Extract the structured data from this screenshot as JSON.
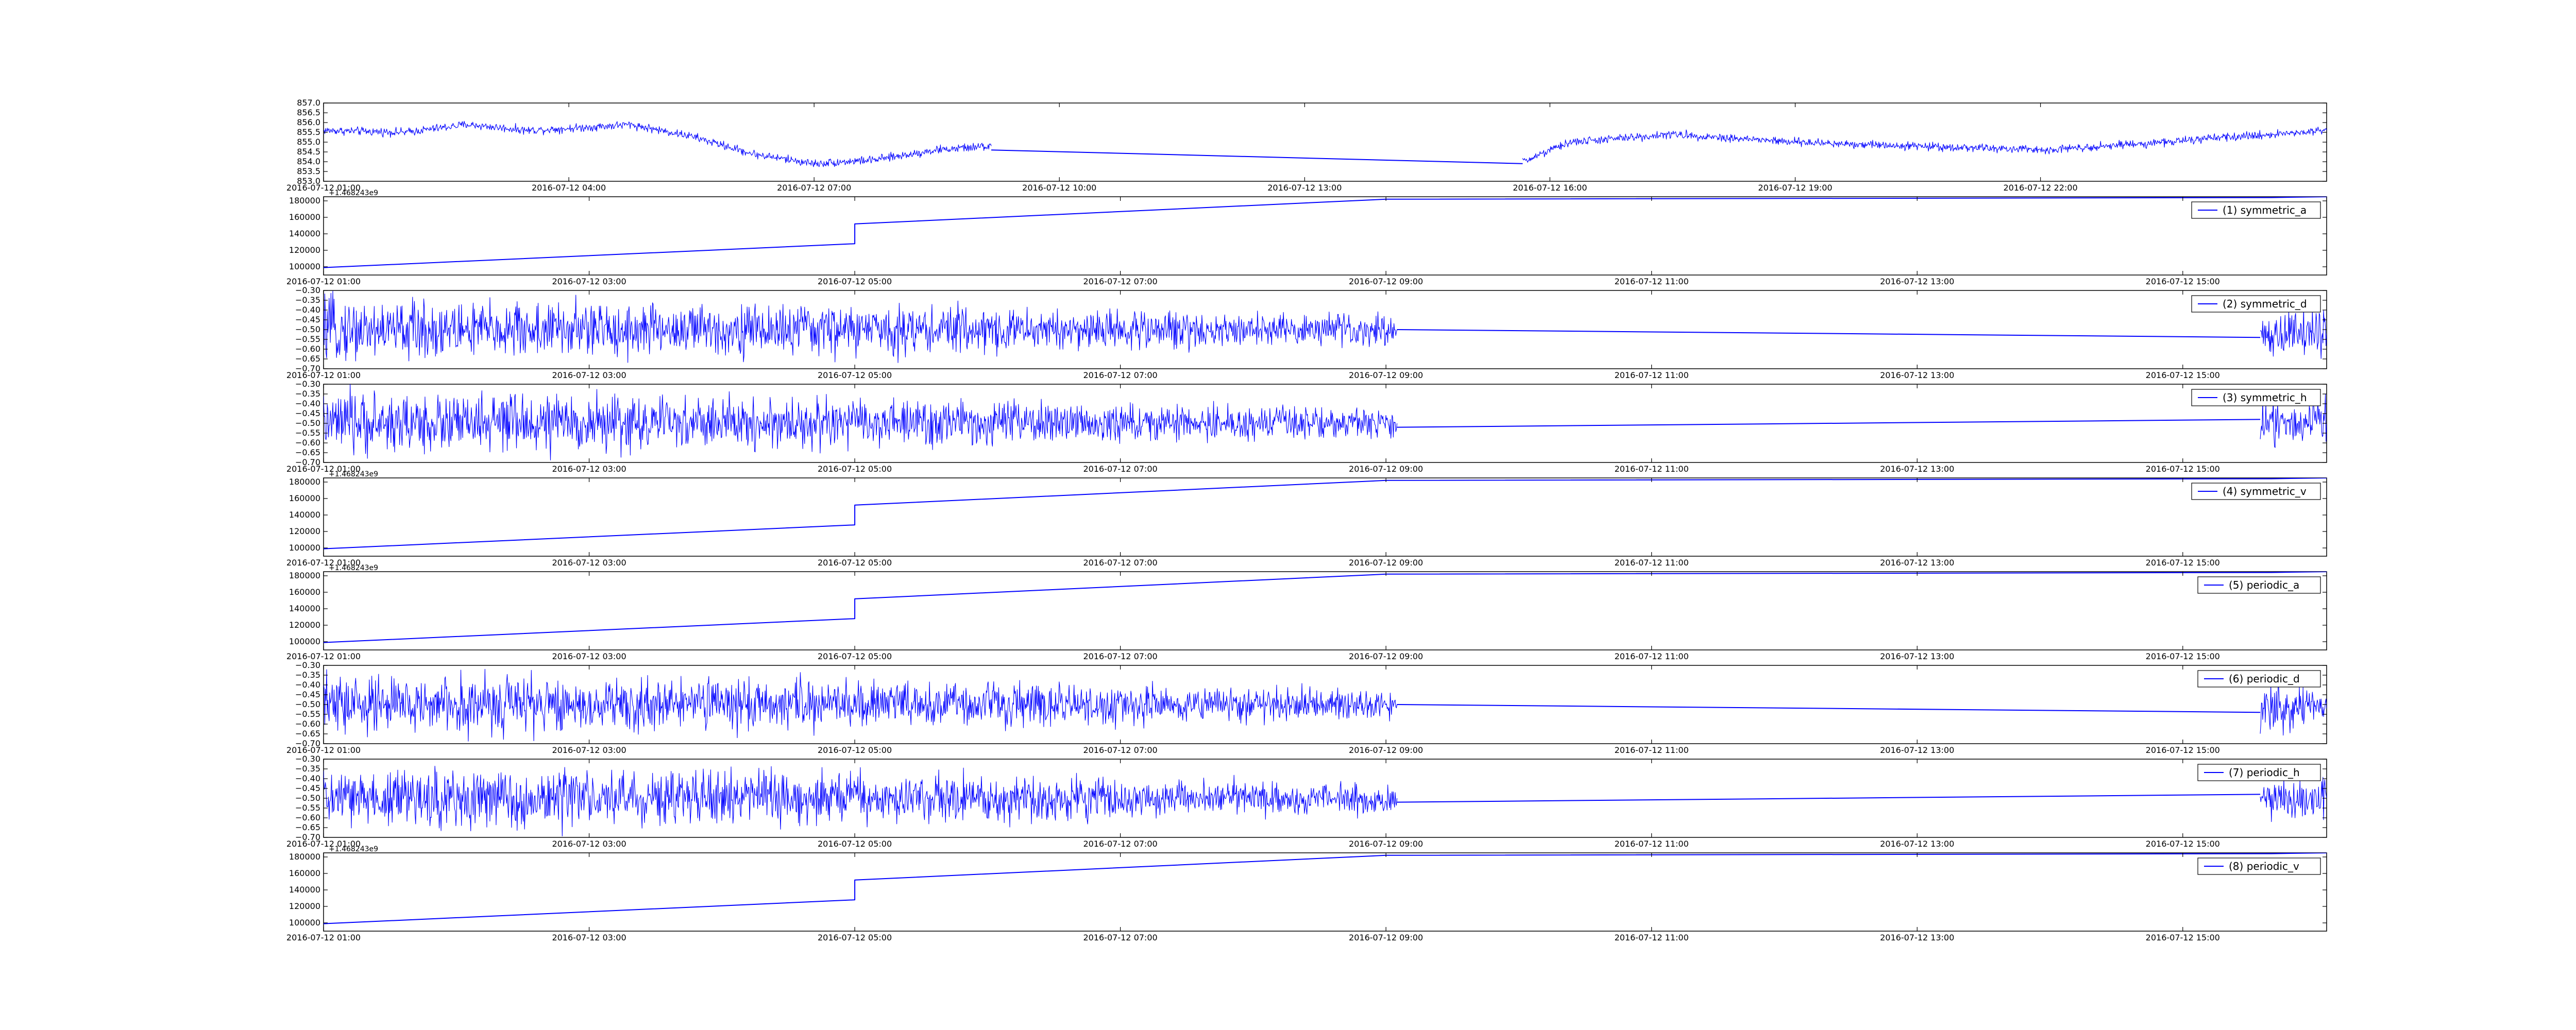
{
  "colors": {
    "series": "#0000ff",
    "axes": "#000000",
    "background": "#ffffff"
  },
  "chart_data": [
    {
      "type": "line",
      "title": "",
      "xlabel": "",
      "ylabel": "",
      "legend": null,
      "offset_text": "",
      "ylim": [
        853.0,
        857.0
      ],
      "ytick_labels": [
        "853.0",
        "853.5",
        "854.0",
        "854.5",
        "855.0",
        "855.5",
        "856.0",
        "856.5",
        "857.0"
      ],
      "xtick_labels": [
        "2016-07-12 01:00",
        "2016-07-12 04:00",
        "2016-07-12 07:00",
        "2016-07-12 10:00",
        "2016-07-12 13:00",
        "2016-07-12 16:00",
        "2016-07-12 19:00",
        "2016-07-12 22:00"
      ],
      "xlim": [
        "2016-07-12 01:00",
        "2016-07-13 01:30"
      ],
      "noise": 0.18,
      "series": [
        {
          "x": [
            "2016-07-12 01:00",
            "2016-07-12 02:00",
            "2016-07-12 02:45",
            "2016-07-12 03:30",
            "2016-07-12 04:00",
            "2016-07-12 04:45",
            "2016-07-12 05:30",
            "2016-07-12 06:15",
            "2016-07-12 07:00",
            "2016-07-12 07:45",
            "2016-07-12 08:30",
            "2016-07-12 09:10"
          ],
          "y": [
            855.6,
            855.5,
            855.9,
            855.6,
            855.7,
            855.9,
            855.3,
            854.4,
            853.9,
            854.1,
            854.6,
            854.8
          ]
        },
        {
          "x": [
            "2016-07-12 09:10",
            "2016-07-12 15:40"
          ],
          "y": [
            854.6,
            853.9
          ],
          "noise": 0
        },
        {
          "x": [
            "2016-07-12 15:40",
            "2016-07-12 16:15",
            "2016-07-12 17:30",
            "2016-07-12 19:00",
            "2016-07-12 20:30",
            "2016-07-12 22:00",
            "2016-07-12 23:30",
            "2016-07-13 01:30"
          ],
          "y": [
            854.0,
            855.0,
            855.4,
            855.0,
            854.8,
            854.6,
            855.0,
            855.6
          ]
        }
      ]
    },
    {
      "type": "line",
      "legend": "(1) symmetric_a",
      "offset_text": "+1.468243e9",
      "ylim": [
        90000,
        185000
      ],
      "ytick_labels": [
        "100000",
        "120000",
        "140000",
        "160000",
        "180000"
      ],
      "xtick_labels": [
        "2016-07-12 01:00",
        "2016-07-12 03:00",
        "2016-07-12 05:00",
        "2016-07-12 07:00",
        "2016-07-12 09:00",
        "2016-07-12 11:00",
        "2016-07-12 13:00",
        "2016-07-12 15:00"
      ],
      "xlim": [
        "2016-07-12 01:00",
        "2016-07-12 16:05"
      ],
      "noise": 0,
      "series": [
        {
          "x": [
            "2016-07-12 01:00",
            "2016-07-12 05:00",
            "2016-07-12 05:00",
            "2016-07-12 09:00",
            "2016-07-12 15:40",
            "2016-07-12 16:05"
          ],
          "y": [
            99000,
            128000,
            152000,
            182000,
            184000,
            185000
          ]
        }
      ]
    },
    {
      "type": "line",
      "legend": "(2) symmetric_d",
      "offset_text": "",
      "ylim": [
        -0.7,
        -0.3
      ],
      "ytick_labels": [
        "−0.70",
        "−0.65",
        "−0.60",
        "−0.55",
        "−0.50",
        "−0.45",
        "−0.40",
        "−0.35",
        "−0.30"
      ],
      "xtick_labels": [
        "2016-07-12 01:00",
        "2016-07-12 03:00",
        "2016-07-12 05:00",
        "2016-07-12 07:00",
        "2016-07-12 09:00",
        "2016-07-12 11:00",
        "2016-07-12 13:00",
        "2016-07-12 15:00"
      ],
      "xlim": [
        "2016-07-12 01:00",
        "2016-07-12 16:05"
      ],
      "noise": 0.1,
      "series": [
        {
          "x": [
            "2016-07-12 01:00",
            "2016-07-12 05:00",
            "2016-07-12 07:00",
            "2016-07-12 09:05"
          ],
          "y": [
            -0.5,
            -0.5,
            -0.5,
            -0.5
          ],
          "noise": [
            0.13,
            0.06
          ]
        },
        {
          "x": [
            "2016-07-12 09:05",
            "2016-07-12 15:35"
          ],
          "y": [
            -0.5,
            -0.54
          ],
          "noise": 0
        },
        {
          "x": [
            "2016-07-12 15:35",
            "2016-07-12 16:05"
          ],
          "y": [
            -0.52,
            -0.52
          ],
          "noise": [
            0.1,
            0.1
          ]
        }
      ]
    },
    {
      "type": "line",
      "legend": "(3) symmetric_h",
      "offset_text": "",
      "ylim": [
        -0.7,
        -0.3
      ],
      "ytick_labels": [
        "−0.70",
        "−0.65",
        "−0.60",
        "−0.55",
        "−0.50",
        "−0.45",
        "−0.40",
        "−0.35",
        "−0.30"
      ],
      "xtick_labels": [
        "2016-07-12 01:00",
        "2016-07-12 03:00",
        "2016-07-12 05:00",
        "2016-07-12 07:00",
        "2016-07-12 09:00",
        "2016-07-12 11:00",
        "2016-07-12 13:00",
        "2016-07-12 15:00"
      ],
      "xlim": [
        "2016-07-12 01:00",
        "2016-07-12 16:05"
      ],
      "noise": 0.1,
      "series": [
        {
          "x": [
            "2016-07-12 01:00",
            "2016-07-12 05:00",
            "2016-07-12 07:00",
            "2016-07-12 09:05"
          ],
          "y": [
            -0.5,
            -0.5,
            -0.5,
            -0.5
          ],
          "noise": [
            0.13,
            0.06
          ]
        },
        {
          "x": [
            "2016-07-12 09:05",
            "2016-07-12 15:35"
          ],
          "y": [
            -0.52,
            -0.48
          ],
          "noise": 0
        },
        {
          "x": [
            "2016-07-12 15:35",
            "2016-07-12 16:05"
          ],
          "y": [
            -0.5,
            -0.5
          ],
          "noise": [
            0.1,
            0.1
          ]
        }
      ]
    },
    {
      "type": "line",
      "legend": "(4) symmetric_v",
      "offset_text": "+1.468243e9",
      "ylim": [
        90000,
        185000
      ],
      "ytick_labels": [
        "100000",
        "120000",
        "140000",
        "160000",
        "180000"
      ],
      "xtick_labels": [
        "2016-07-12 01:00",
        "2016-07-12 03:00",
        "2016-07-12 05:00",
        "2016-07-12 07:00",
        "2016-07-12 09:00",
        "2016-07-12 11:00",
        "2016-07-12 13:00",
        "2016-07-12 15:00"
      ],
      "xlim": [
        "2016-07-12 01:00",
        "2016-07-12 16:05"
      ],
      "noise": 0,
      "series": [
        {
          "x": [
            "2016-07-12 01:00",
            "2016-07-12 05:00",
            "2016-07-12 05:00",
            "2016-07-12 09:00",
            "2016-07-12 15:40",
            "2016-07-12 16:05"
          ],
          "y": [
            99000,
            128000,
            152000,
            182000,
            184000,
            185000
          ]
        }
      ]
    },
    {
      "type": "line",
      "legend": "(5) periodic_a",
      "offset_text": "+1.468243e9",
      "ylim": [
        90000,
        185000
      ],
      "ytick_labels": [
        "100000",
        "120000",
        "140000",
        "160000",
        "180000"
      ],
      "xtick_labels": [
        "2016-07-12 01:00",
        "2016-07-12 03:00",
        "2016-07-12 05:00",
        "2016-07-12 07:00",
        "2016-07-12 09:00",
        "2016-07-12 11:00",
        "2016-07-12 13:00",
        "2016-07-12 15:00"
      ],
      "xlim": [
        "2016-07-12 01:00",
        "2016-07-12 16:05"
      ],
      "noise": 0,
      "series": [
        {
          "x": [
            "2016-07-12 01:00",
            "2016-07-12 05:00",
            "2016-07-12 05:00",
            "2016-07-12 09:00",
            "2016-07-12 15:40",
            "2016-07-12 16:05"
          ],
          "y": [
            99000,
            128000,
            152000,
            182000,
            184000,
            185000
          ]
        }
      ]
    },
    {
      "type": "line",
      "legend": "(6) periodic_d",
      "offset_text": "",
      "ylim": [
        -0.7,
        -0.3
      ],
      "ytick_labels": [
        "−0.70",
        "−0.65",
        "−0.60",
        "−0.55",
        "−0.50",
        "−0.45",
        "−0.40",
        "−0.35",
        "−0.30"
      ],
      "xtick_labels": [
        "2016-07-12 01:00",
        "2016-07-12 03:00",
        "2016-07-12 05:00",
        "2016-07-12 07:00",
        "2016-07-12 09:00",
        "2016-07-12 11:00",
        "2016-07-12 13:00",
        "2016-07-12 15:00"
      ],
      "xlim": [
        "2016-07-12 01:00",
        "2016-07-12 16:05"
      ],
      "noise": 0.1,
      "series": [
        {
          "x": [
            "2016-07-12 01:00",
            "2016-07-12 05:00",
            "2016-07-12 07:00",
            "2016-07-12 09:05"
          ],
          "y": [
            -0.5,
            -0.5,
            -0.5,
            -0.5
          ],
          "noise": [
            0.13,
            0.06
          ]
        },
        {
          "x": [
            "2016-07-12 09:05",
            "2016-07-12 15:35"
          ],
          "y": [
            -0.5,
            -0.54
          ],
          "noise": 0
        },
        {
          "x": [
            "2016-07-12 15:35",
            "2016-07-12 16:05"
          ],
          "y": [
            -0.52,
            -0.52
          ],
          "noise": [
            0.1,
            0.1
          ]
        }
      ]
    },
    {
      "type": "line",
      "legend": "(7) periodic_h",
      "offset_text": "",
      "ylim": [
        -0.7,
        -0.3
      ],
      "ytick_labels": [
        "−0.70",
        "−0.65",
        "−0.60",
        "−0.55",
        "−0.50",
        "−0.45",
        "−0.40",
        "−0.35",
        "−0.30"
      ],
      "xtick_labels": [
        "2016-07-12 01:00",
        "2016-07-12 03:00",
        "2016-07-12 05:00",
        "2016-07-12 07:00",
        "2016-07-12 09:00",
        "2016-07-12 11:00",
        "2016-07-12 13:00",
        "2016-07-12 15:00"
      ],
      "xlim": [
        "2016-07-12 01:00",
        "2016-07-12 16:05"
      ],
      "noise": 0.1,
      "series": [
        {
          "x": [
            "2016-07-12 01:00",
            "2016-07-12 05:00",
            "2016-07-12 07:00",
            "2016-07-12 09:05"
          ],
          "y": [
            -0.5,
            -0.5,
            -0.5,
            -0.5
          ],
          "noise": [
            0.13,
            0.06
          ]
        },
        {
          "x": [
            "2016-07-12 09:05",
            "2016-07-12 15:35"
          ],
          "y": [
            -0.52,
            -0.48
          ],
          "noise": 0
        },
        {
          "x": [
            "2016-07-12 15:35",
            "2016-07-12 16:05"
          ],
          "y": [
            -0.5,
            -0.5
          ],
          "noise": [
            0.1,
            0.1
          ]
        }
      ]
    },
    {
      "type": "line",
      "legend": "(8) periodic_v",
      "offset_text": "+1.468243e9",
      "ylim": [
        90000,
        185000
      ],
      "ytick_labels": [
        "100000",
        "120000",
        "140000",
        "160000",
        "180000"
      ],
      "xtick_labels": [
        "2016-07-12 01:00",
        "2016-07-12 03:00",
        "2016-07-12 05:00",
        "2016-07-12 07:00",
        "2016-07-12 09:00",
        "2016-07-12 11:00",
        "2016-07-12 13:00",
        "2016-07-12 15:00"
      ],
      "xlim": [
        "2016-07-12 01:00",
        "2016-07-12 16:05"
      ],
      "noise": 0,
      "series": [
        {
          "x": [
            "2016-07-12 01:00",
            "2016-07-12 05:00",
            "2016-07-12 05:00",
            "2016-07-12 09:00",
            "2016-07-12 15:40",
            "2016-07-12 16:05"
          ],
          "y": [
            99000,
            128000,
            152000,
            182000,
            184000,
            185000
          ]
        }
      ]
    }
  ]
}
